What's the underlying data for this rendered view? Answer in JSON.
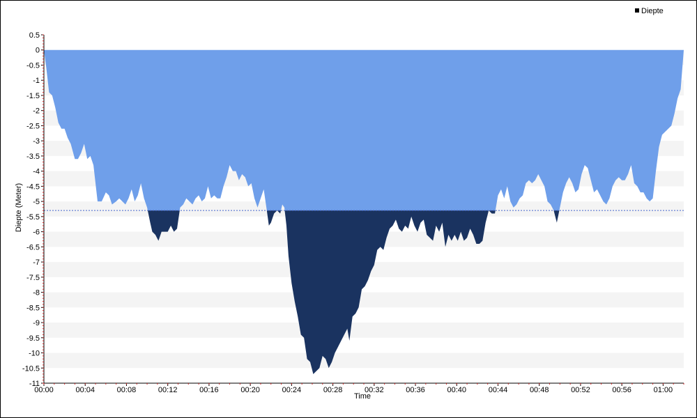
{
  "chart_data": {
    "type": "area",
    "title": "",
    "xlabel": "Time",
    "ylabel": "Diepte (Meter)",
    "legend": {
      "entries": [
        "Diepte"
      ],
      "placement": "top-right"
    },
    "xlim": [
      0,
      62
    ],
    "ylim": [
      -11,
      0.5
    ],
    "x_unit": "minutes",
    "threshold": -5.3,
    "x_ticks": [
      {
        "value": 0,
        "label": "00:00"
      },
      {
        "value": 4,
        "label": "00:04"
      },
      {
        "value": 8,
        "label": "00:08"
      },
      {
        "value": 12,
        "label": "00:12"
      },
      {
        "value": 16,
        "label": "00:16"
      },
      {
        "value": 20,
        "label": "00:20"
      },
      {
        "value": 24,
        "label": "00:24"
      },
      {
        "value": 28,
        "label": "00:28"
      },
      {
        "value": 32,
        "label": "00:32"
      },
      {
        "value": 36,
        "label": "00:36"
      },
      {
        "value": 40,
        "label": "00:40"
      },
      {
        "value": 44,
        "label": "00:44"
      },
      {
        "value": 48,
        "label": "00:48"
      },
      {
        "value": 52,
        "label": "00:52"
      },
      {
        "value": 56,
        "label": "00:56"
      },
      {
        "value": 60,
        "label": "01:00"
      }
    ],
    "y_ticks": [
      {
        "value": 0.5,
        "label": "0.5"
      },
      {
        "value": 0,
        "label": "0"
      },
      {
        "value": -0.5,
        "label": "-0.5"
      },
      {
        "value": -1,
        "label": "-1"
      },
      {
        "value": -1.5,
        "label": "-1.5"
      },
      {
        "value": -2,
        "label": "-2"
      },
      {
        "value": -2.5,
        "label": "-2.5"
      },
      {
        "value": -3,
        "label": "-3"
      },
      {
        "value": -3.5,
        "label": "-3.5"
      },
      {
        "value": -4,
        "label": "-4"
      },
      {
        "value": -4.5,
        "label": "-4.5"
      },
      {
        "value": -5,
        "label": "-5"
      },
      {
        "value": -5.5,
        "label": "-5.5"
      },
      {
        "value": -6,
        "label": "-6"
      },
      {
        "value": -6.5,
        "label": "-6.5"
      },
      {
        "value": -7,
        "label": "-7"
      },
      {
        "value": -7.5,
        "label": "-7.5"
      },
      {
        "value": -8,
        "label": "-8"
      },
      {
        "value": -8.5,
        "label": "-8.5"
      },
      {
        "value": -9,
        "label": "-9"
      },
      {
        "value": -9.5,
        "label": "-9.5"
      },
      {
        "value": -10,
        "label": "-10"
      },
      {
        "value": -10.5,
        "label": "-10.5"
      },
      {
        "value": -11,
        "label": "-11"
      }
    ],
    "series": [
      {
        "name": "Diepte",
        "colors": {
          "shallow": "#6f9fea",
          "deep": "#1a3360",
          "threshold_line": "#4466cc"
        },
        "points": [
          [
            0,
            0
          ],
          [
            0.2,
            -0.5
          ],
          [
            0.5,
            -1.4
          ],
          [
            0.8,
            -1.5
          ],
          [
            1.1,
            -1.9
          ],
          [
            1.4,
            -2.4
          ],
          [
            1.7,
            -2.6
          ],
          [
            2.0,
            -2.6
          ],
          [
            2.3,
            -2.9
          ],
          [
            2.6,
            -3.1
          ],
          [
            3.0,
            -3.6
          ],
          [
            3.3,
            -3.6
          ],
          [
            3.6,
            -3.4
          ],
          [
            3.9,
            -3.1
          ],
          [
            4.2,
            -3.6
          ],
          [
            4.5,
            -3.5
          ],
          [
            4.8,
            -3.8
          ],
          [
            5.2,
            -5.0
          ],
          [
            5.6,
            -5.0
          ],
          [
            6.0,
            -4.7
          ],
          [
            6.3,
            -4.8
          ],
          [
            6.6,
            -5.1
          ],
          [
            7.0,
            -5.0
          ],
          [
            7.3,
            -4.9
          ],
          [
            7.6,
            -5.0
          ],
          [
            7.9,
            -5.1
          ],
          [
            8.2,
            -4.9
          ],
          [
            8.5,
            -4.6
          ],
          [
            8.8,
            -5.0
          ],
          [
            9.1,
            -4.8
          ],
          [
            9.4,
            -4.4
          ],
          [
            9.7,
            -4.9
          ],
          [
            10.0,
            -5.2
          ],
          [
            10.3,
            -5.7
          ],
          [
            10.5,
            -6.0
          ],
          [
            10.8,
            -6.1
          ],
          [
            11.1,
            -6.3
          ],
          [
            11.4,
            -6.0
          ],
          [
            11.7,
            -6.0
          ],
          [
            12.0,
            -6.0
          ],
          [
            12.3,
            -5.8
          ],
          [
            12.6,
            -6.0
          ],
          [
            12.9,
            -5.9
          ],
          [
            13.2,
            -5.2
          ],
          [
            13.5,
            -5.1
          ],
          [
            13.8,
            -4.9
          ],
          [
            14.1,
            -5.0
          ],
          [
            14.4,
            -5.1
          ],
          [
            14.7,
            -4.9
          ],
          [
            15.0,
            -4.8
          ],
          [
            15.3,
            -5.0
          ],
          [
            15.6,
            -4.9
          ],
          [
            15.9,
            -4.5
          ],
          [
            16.2,
            -4.9
          ],
          [
            16.5,
            -4.8
          ],
          [
            16.8,
            -4.9
          ],
          [
            17.1,
            -4.9
          ],
          [
            17.4,
            -4.5
          ],
          [
            17.7,
            -4.2
          ],
          [
            18.0,
            -3.8
          ],
          [
            18.3,
            -4.0
          ],
          [
            18.6,
            -4.0
          ],
          [
            18.9,
            -4.3
          ],
          [
            19.2,
            -4.1
          ],
          [
            19.5,
            -4.2
          ],
          [
            19.8,
            -4.5
          ],
          [
            20.1,
            -4.4
          ],
          [
            20.4,
            -4.9
          ],
          [
            20.7,
            -5.2
          ],
          [
            21.0,
            -4.9
          ],
          [
            21.3,
            -4.6
          ],
          [
            21.6,
            -5.3
          ],
          [
            21.8,
            -5.8
          ],
          [
            22.0,
            -5.7
          ],
          [
            22.3,
            -5.4
          ],
          [
            22.6,
            -5.3
          ],
          [
            22.9,
            -5.4
          ],
          [
            23.1,
            -5.1
          ],
          [
            23.3,
            -5.2
          ],
          [
            23.5,
            -5.8
          ],
          [
            23.7,
            -6.8
          ],
          [
            24.0,
            -7.7
          ],
          [
            24.3,
            -8.3
          ],
          [
            24.6,
            -8.8
          ],
          [
            24.9,
            -9.4
          ],
          [
            25.2,
            -9.5
          ],
          [
            25.5,
            -10.2
          ],
          [
            25.8,
            -10.3
          ],
          [
            26.1,
            -10.7
          ],
          [
            26.4,
            -10.6
          ],
          [
            26.7,
            -10.5
          ],
          [
            27.0,
            -10.1
          ],
          [
            27.3,
            -10.2
          ],
          [
            27.6,
            -10.5
          ],
          [
            27.9,
            -10.3
          ],
          [
            28.2,
            -10.0
          ],
          [
            28.5,
            -9.8
          ],
          [
            28.8,
            -9.6
          ],
          [
            29.1,
            -9.4
          ],
          [
            29.4,
            -9.2
          ],
          [
            29.6,
            -9.6
          ],
          [
            29.9,
            -8.8
          ],
          [
            30.2,
            -8.7
          ],
          [
            30.5,
            -8.5
          ],
          [
            30.8,
            -7.9
          ],
          [
            31.1,
            -7.8
          ],
          [
            31.4,
            -7.6
          ],
          [
            31.7,
            -7.3
          ],
          [
            32.0,
            -7.1
          ],
          [
            32.3,
            -6.6
          ],
          [
            32.6,
            -6.5
          ],
          [
            32.9,
            -6.6
          ],
          [
            33.2,
            -6.2
          ],
          [
            33.5,
            -5.9
          ],
          [
            33.8,
            -5.8
          ],
          [
            34.1,
            -5.6
          ],
          [
            34.4,
            -5.9
          ],
          [
            34.7,
            -6.0
          ],
          [
            35.0,
            -5.8
          ],
          [
            35.3,
            -5.9
          ],
          [
            35.6,
            -5.5
          ],
          [
            35.9,
            -5.8
          ],
          [
            36.2,
            -6.0
          ],
          [
            36.5,
            -5.7
          ],
          [
            36.8,
            -5.6
          ],
          [
            37.1,
            -6.1
          ],
          [
            37.4,
            -6.2
          ],
          [
            37.7,
            -6.3
          ],
          [
            38.0,
            -5.8
          ],
          [
            38.3,
            -6.0
          ],
          [
            38.6,
            -5.7
          ],
          [
            38.9,
            -6.5
          ],
          [
            39.2,
            -6.1
          ],
          [
            39.5,
            -6.3
          ],
          [
            39.8,
            -6.1
          ],
          [
            40.1,
            -6.3
          ],
          [
            40.4,
            -6.0
          ],
          [
            40.7,
            -6.3
          ],
          [
            41.0,
            -6.2
          ],
          [
            41.3,
            -5.9
          ],
          [
            41.6,
            -6.1
          ],
          [
            41.9,
            -6.4
          ],
          [
            42.2,
            -6.4
          ],
          [
            42.5,
            -6.3
          ],
          [
            42.8,
            -5.7
          ],
          [
            43.1,
            -5.3
          ],
          [
            43.4,
            -5.4
          ],
          [
            43.7,
            -5.4
          ],
          [
            44.0,
            -4.8
          ],
          [
            44.3,
            -4.6
          ],
          [
            44.6,
            -4.9
          ],
          [
            44.9,
            -4.5
          ],
          [
            45.2,
            -5.0
          ],
          [
            45.5,
            -5.2
          ],
          [
            45.8,
            -5.1
          ],
          [
            46.1,
            -4.9
          ],
          [
            46.4,
            -4.8
          ],
          [
            46.7,
            -4.4
          ],
          [
            47.0,
            -4.3
          ],
          [
            47.3,
            -4.4
          ],
          [
            47.6,
            -4.3
          ],
          [
            47.9,
            -4.1
          ],
          [
            48.2,
            -4.3
          ],
          [
            48.5,
            -4.5
          ],
          [
            48.8,
            -5.0
          ],
          [
            49.1,
            -5.1
          ],
          [
            49.4,
            -5.3
          ],
          [
            49.7,
            -5.7
          ],
          [
            50.0,
            -5.2
          ],
          [
            50.3,
            -4.7
          ],
          [
            50.6,
            -4.4
          ],
          [
            50.9,
            -4.2
          ],
          [
            51.2,
            -4.4
          ],
          [
            51.5,
            -4.7
          ],
          [
            51.8,
            -4.6
          ],
          [
            52.1,
            -4.1
          ],
          [
            52.4,
            -3.8
          ],
          [
            52.7,
            -3.9
          ],
          [
            53.0,
            -4.3
          ],
          [
            53.3,
            -4.7
          ],
          [
            53.6,
            -4.6
          ],
          [
            53.9,
            -4.8
          ],
          [
            54.2,
            -5.0
          ],
          [
            54.5,
            -5.1
          ],
          [
            54.8,
            -4.9
          ],
          [
            55.1,
            -4.5
          ],
          [
            55.4,
            -4.3
          ],
          [
            55.7,
            -4.2
          ],
          [
            56.0,
            -4.3
          ],
          [
            56.3,
            -4.3
          ],
          [
            56.6,
            -4.1
          ],
          [
            56.9,
            -3.8
          ],
          [
            57.2,
            -4.4
          ],
          [
            57.5,
            -4.5
          ],
          [
            57.8,
            -4.7
          ],
          [
            58.1,
            -4.7
          ],
          [
            58.4,
            -4.9
          ],
          [
            58.7,
            -5.0
          ],
          [
            59.0,
            -4.9
          ],
          [
            59.3,
            -4.0
          ],
          [
            59.6,
            -3.2
          ],
          [
            59.9,
            -2.8
          ],
          [
            60.2,
            -2.7
          ],
          [
            60.5,
            -2.6
          ],
          [
            60.8,
            -2.5
          ],
          [
            61.1,
            -2.1
          ],
          [
            61.4,
            -1.6
          ],
          [
            61.7,
            -1.3
          ],
          [
            62.0,
            0
          ]
        ]
      }
    ]
  }
}
